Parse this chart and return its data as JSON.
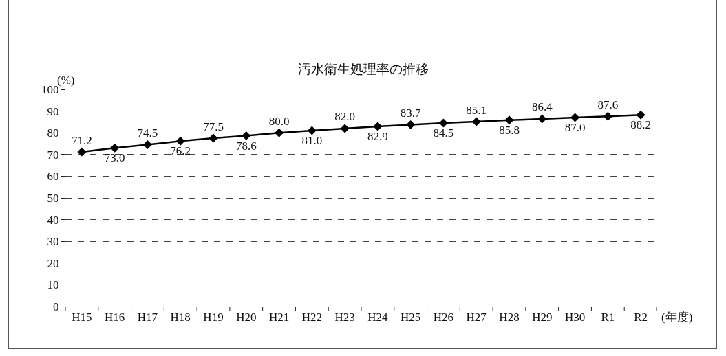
{
  "chart_data": {
    "type": "line",
    "title": "汚水衛生処理率の推移",
    "ylabel": "(%)",
    "xlabel": "(年度)",
    "categories": [
      "H15",
      "H16",
      "H17",
      "H18",
      "H19",
      "H20",
      "H21",
      "H22",
      "H23",
      "H24",
      "H25",
      "H26",
      "H27",
      "H28",
      "H29",
      "H30",
      "R1",
      "R2"
    ],
    "series": [
      {
        "color": "#000000",
        "values": [
          71.2,
          73.0,
          74.5,
          76.2,
          77.5,
          78.6,
          80.0,
          81.0,
          82.0,
          82.9,
          83.7,
          84.5,
          85.1,
          85.8,
          86.4,
          87.0,
          87.6,
          88.2
        ]
      }
    ],
    "value_labels": [
      "71.2",
      "73.0",
      "74.5",
      "76.2",
      "77.5",
      "78.6",
      "80.0",
      "81.0",
      "82.0",
      "82.9",
      "83.7",
      "84.5",
      "85.1",
      "85.8",
      "86.4",
      "87.0",
      "87.6",
      "88.2"
    ],
    "ylim": [
      0,
      100
    ],
    "yticks": [
      0,
      10,
      20,
      30,
      40,
      50,
      60,
      70,
      80,
      90,
      100
    ],
    "grid": "y",
    "marker": "diamond",
    "line_style": "solid"
  }
}
